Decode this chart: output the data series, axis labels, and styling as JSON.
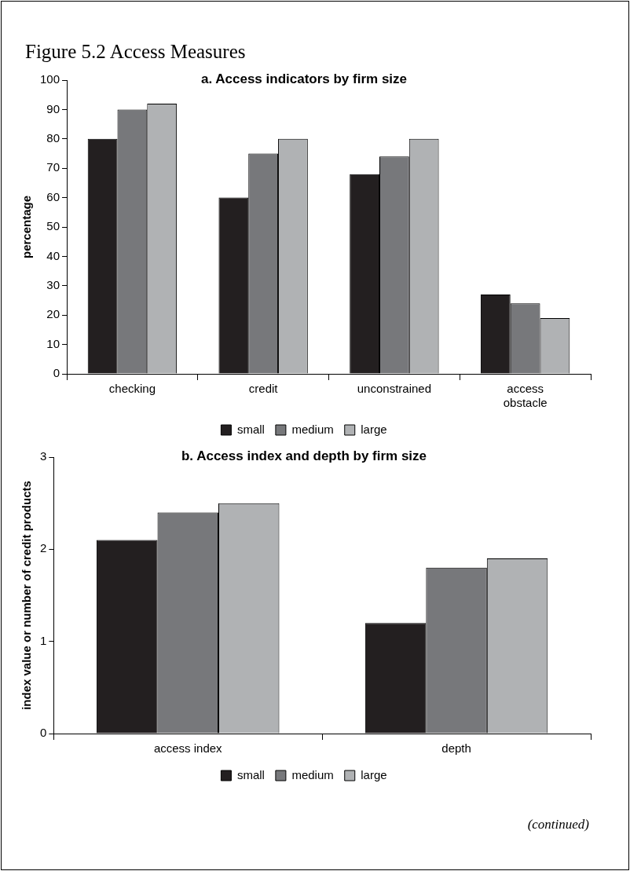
{
  "chart_data": [
    {
      "type": "bar",
      "title": "a. Access indicators by firm size",
      "ylabel": "percentage",
      "annotations": [
        "Figure 5.2 Access Measures"
      ],
      "categories": [
        "checking",
        "credit",
        "unconstrained",
        "access obstacle"
      ],
      "series": [
        {
          "name": "small",
          "color": "#231f20",
          "values": [
            80,
            60,
            68,
            27
          ]
        },
        {
          "name": "medium",
          "color": "#77787b",
          "values": [
            90,
            75,
            74,
            24
          ]
        },
        {
          "name": "large",
          "color": "#b0b2b4",
          "values": [
            92,
            80,
            80,
            19
          ]
        }
      ],
      "ylim": [
        0,
        100
      ],
      "yticks": [
        0,
        10,
        20,
        30,
        40,
        50,
        60,
        70,
        80,
        90,
        100
      ],
      "grid": false,
      "legend": "bottom"
    },
    {
      "type": "bar",
      "title": "b. Access index and depth by firm size",
      "ylabel": "index value or number of credit products",
      "annotations": [
        "(continued)"
      ],
      "categories": [
        "access index",
        "depth"
      ],
      "series": [
        {
          "name": "small",
          "color": "#231f20",
          "values": [
            2.1,
            1.2
          ]
        },
        {
          "name": "medium",
          "color": "#77787b",
          "values": [
            2.4,
            1.8
          ]
        },
        {
          "name": "large",
          "color": "#b0b2b4",
          "values": [
            2.5,
            1.9
          ]
        }
      ],
      "ylim": [
        0,
        3
      ],
      "yticks": [
        0,
        1,
        2,
        3
      ],
      "grid": false,
      "legend": "bottom"
    }
  ]
}
